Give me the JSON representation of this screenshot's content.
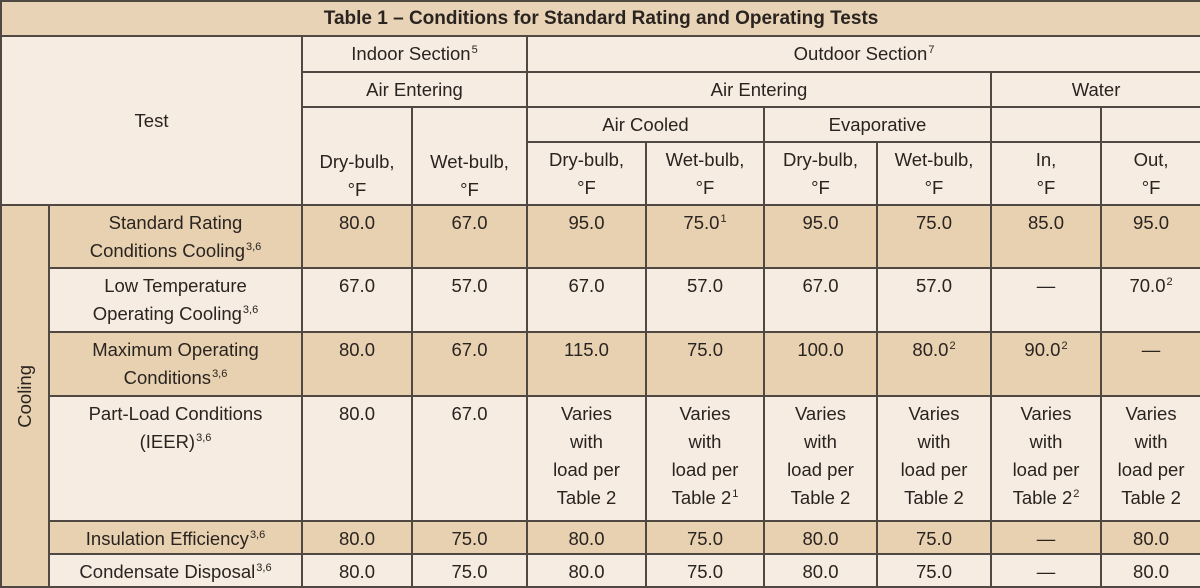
{
  "title": "Table 1 – Conditions for Standard Rating and Operating Tests",
  "header": {
    "test": "Test",
    "indoor_section": "Indoor Section",
    "indoor_sup": "5",
    "outdoor_section": "Outdoor Section",
    "outdoor_sup": "7",
    "indoor_air_entering": "Air Entering",
    "outdoor_air_entering": "Air Entering",
    "water": "Water",
    "air_cooled": "Air Cooled",
    "evaporative": "Evaporative",
    "columns": [
      "Dry-bulb,\n°F",
      "Wet-bulb,\n°F",
      "Dry-bulb,\n°F",
      "Wet-bulb,\n°F",
      "Dry-bulb,\n°F",
      "Wet-bulb,\n°F",
      "In,\n°F",
      "Out,\n°F"
    ]
  },
  "group_label": "Cooling",
  "rows": [
    {
      "label": "Standard Rating\nConditions Cooling",
      "sup": "3,6",
      "cells": [
        {
          "v": "80.0"
        },
        {
          "v": "67.0"
        },
        {
          "v": "95.0"
        },
        {
          "v": "75.0",
          "sup": "1"
        },
        {
          "v": "95.0"
        },
        {
          "v": "75.0"
        },
        {
          "v": "85.0"
        },
        {
          "v": "95.0"
        }
      ]
    },
    {
      "label": "Low Temperature\nOperating Cooling",
      "sup": "3,6",
      "cells": [
        {
          "v": "67.0"
        },
        {
          "v": "57.0"
        },
        {
          "v": "67.0"
        },
        {
          "v": "57.0"
        },
        {
          "v": "67.0"
        },
        {
          "v": "57.0"
        },
        {
          "v": "—"
        },
        {
          "v": "70.0",
          "sup": "2"
        }
      ]
    },
    {
      "label": "Maximum Operating\nConditions",
      "sup": "3,6",
      "cells": [
        {
          "v": "80.0"
        },
        {
          "v": "67.0"
        },
        {
          "v": "115.0"
        },
        {
          "v": "75.0"
        },
        {
          "v": "100.0"
        },
        {
          "v": "80.0",
          "sup": "2"
        },
        {
          "v": "90.0",
          "sup": "2"
        },
        {
          "v": "—"
        }
      ]
    },
    {
      "label": "Part-Load Conditions\n(IEER)",
      "sup": "3,6",
      "cells": [
        {
          "v": "80.0"
        },
        {
          "v": "67.0"
        },
        {
          "v": "Varies\nwith\nload per\nTable 2"
        },
        {
          "v": "Varies\nwith\nload per\nTable 2",
          "sup": "1"
        },
        {
          "v": "Varies\nwith\nload per\nTable 2"
        },
        {
          "v": "Varies\nwith\nload per\nTable 2"
        },
        {
          "v": "Varies\nwith\nload per\nTable 2",
          "sup": "2"
        },
        {
          "v": "Varies\nwith\nload per\nTable 2"
        }
      ]
    },
    {
      "label": "Insulation Efficiency",
      "sup": "3,6",
      "cells": [
        {
          "v": "80.0"
        },
        {
          "v": "75.0"
        },
        {
          "v": "80.0"
        },
        {
          "v": "75.0"
        },
        {
          "v": "80.0"
        },
        {
          "v": "75.0"
        },
        {
          "v": "—"
        },
        {
          "v": "80.0"
        }
      ]
    },
    {
      "label": "Condensate Disposal",
      "sup": "3,6",
      "cells": [
        {
          "v": "80.0"
        },
        {
          "v": "75.0"
        },
        {
          "v": "80.0"
        },
        {
          "v": "75.0"
        },
        {
          "v": "80.0"
        },
        {
          "v": "75.0"
        },
        {
          "v": "—"
        },
        {
          "v": "80.0"
        }
      ]
    }
  ]
}
